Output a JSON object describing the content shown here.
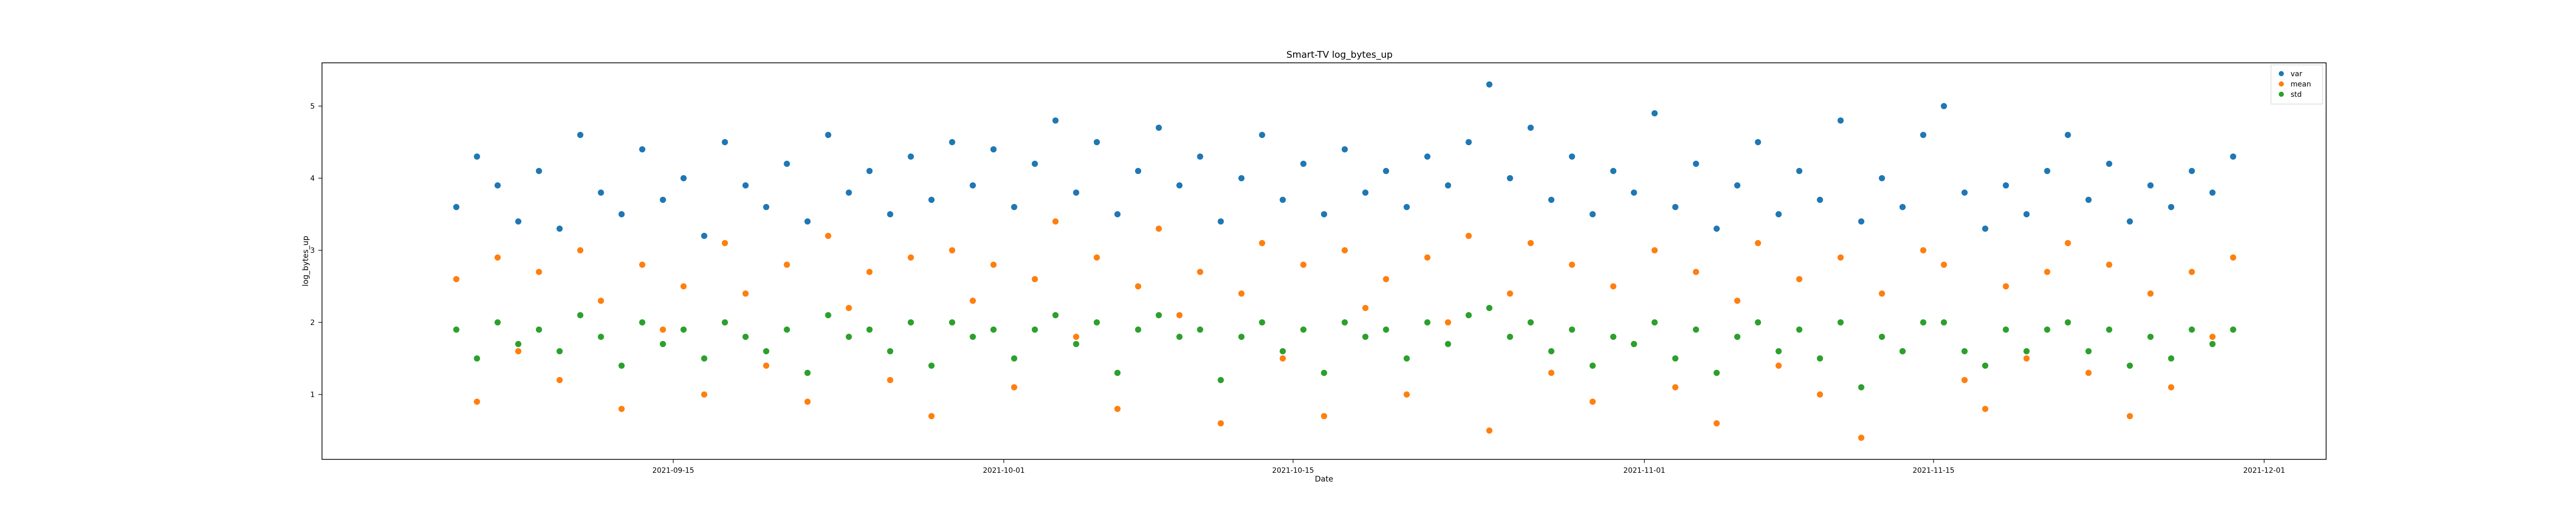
{
  "chart_data": {
    "type": "scatter",
    "title": "Smart-TV log_bytes_up",
    "xlabel": "Date",
    "ylabel": "log_bytes_up",
    "xlim": [
      "2021-08-29",
      "2021-12-04"
    ],
    "ylim": [
      0.1,
      5.6
    ],
    "x_ticks": [
      "2021-09-15",
      "2021-10-01",
      "2021-10-15",
      "2021-11-01",
      "2021-11-15",
      "2021-12-01"
    ],
    "y_ticks": [
      1,
      2,
      3,
      4,
      5
    ],
    "grid": false,
    "legend_position": "top-right",
    "series": [
      {
        "name": "var",
        "color": "#1f77b4",
        "points": [
          [
            "2021-09-04",
            3.6
          ],
          [
            "2021-09-05",
            4.3
          ],
          [
            "2021-09-06",
            3.9
          ],
          [
            "2021-09-07",
            3.4
          ],
          [
            "2021-09-08",
            4.1
          ],
          [
            "2021-09-09",
            3.3
          ],
          [
            "2021-09-10",
            4.6
          ],
          [
            "2021-09-11",
            3.8
          ],
          [
            "2021-09-12",
            3.5
          ],
          [
            "2021-09-13",
            4.4
          ],
          [
            "2021-09-14",
            3.7
          ],
          [
            "2021-09-15",
            4.0
          ],
          [
            "2021-09-16",
            3.2
          ],
          [
            "2021-09-17",
            4.5
          ],
          [
            "2021-09-18",
            3.9
          ],
          [
            "2021-09-19",
            3.6
          ],
          [
            "2021-09-20",
            4.2
          ],
          [
            "2021-09-21",
            3.4
          ],
          [
            "2021-09-22",
            4.6
          ],
          [
            "2021-09-23",
            3.8
          ],
          [
            "2021-09-24",
            4.1
          ],
          [
            "2021-09-25",
            3.5
          ],
          [
            "2021-09-26",
            4.3
          ],
          [
            "2021-09-27",
            3.7
          ],
          [
            "2021-09-28",
            4.5
          ],
          [
            "2021-09-29",
            3.9
          ],
          [
            "2021-09-30",
            4.4
          ],
          [
            "2021-10-01",
            3.6
          ],
          [
            "2021-10-02",
            4.2
          ],
          [
            "2021-10-03",
            4.8
          ],
          [
            "2021-10-04",
            3.8
          ],
          [
            "2021-10-05",
            4.5
          ],
          [
            "2021-10-06",
            3.5
          ],
          [
            "2021-10-07",
            4.1
          ],
          [
            "2021-10-08",
            4.7
          ],
          [
            "2021-10-09",
            3.9
          ],
          [
            "2021-10-10",
            4.3
          ],
          [
            "2021-10-11",
            3.4
          ],
          [
            "2021-10-12",
            4.0
          ],
          [
            "2021-10-13",
            4.6
          ],
          [
            "2021-10-14",
            3.7
          ],
          [
            "2021-10-15",
            4.2
          ],
          [
            "2021-10-16",
            3.5
          ],
          [
            "2021-10-17",
            4.4
          ],
          [
            "2021-10-18",
            3.8
          ],
          [
            "2021-10-19",
            4.1
          ],
          [
            "2021-10-20",
            3.6
          ],
          [
            "2021-10-21",
            4.3
          ],
          [
            "2021-10-22",
            3.9
          ],
          [
            "2021-10-23",
            4.5
          ],
          [
            "2021-10-24",
            5.3
          ],
          [
            "2021-10-25",
            4.0
          ],
          [
            "2021-10-26",
            4.7
          ],
          [
            "2021-10-27",
            3.7
          ],
          [
            "2021-10-28",
            4.3
          ],
          [
            "2021-10-29",
            3.5
          ],
          [
            "2021-10-30",
            4.1
          ],
          [
            "2021-10-31",
            3.8
          ],
          [
            "2021-11-01",
            4.9
          ],
          [
            "2021-11-02",
            3.6
          ],
          [
            "2021-11-03",
            4.2
          ],
          [
            "2021-11-04",
            3.3
          ],
          [
            "2021-11-05",
            3.9
          ],
          [
            "2021-11-06",
            4.5
          ],
          [
            "2021-11-07",
            3.5
          ],
          [
            "2021-11-08",
            4.1
          ],
          [
            "2021-11-09",
            3.7
          ],
          [
            "2021-11-10",
            4.8
          ],
          [
            "2021-11-11",
            3.4
          ],
          [
            "2021-11-12",
            4.0
          ],
          [
            "2021-11-13",
            3.6
          ],
          [
            "2021-11-14",
            4.6
          ],
          [
            "2021-11-15",
            5.0
          ],
          [
            "2021-11-16",
            3.8
          ],
          [
            "2021-11-17",
            3.3
          ],
          [
            "2021-11-18",
            3.9
          ],
          [
            "2021-11-19",
            3.5
          ],
          [
            "2021-11-20",
            4.1
          ],
          [
            "2021-11-21",
            4.6
          ],
          [
            "2021-11-22",
            3.7
          ],
          [
            "2021-11-23",
            4.2
          ],
          [
            "2021-11-24",
            3.4
          ],
          [
            "2021-11-25",
            3.9
          ],
          [
            "2021-11-26",
            3.6
          ],
          [
            "2021-11-27",
            4.1
          ],
          [
            "2021-11-28",
            3.8
          ],
          [
            "2021-11-29",
            4.3
          ]
        ]
      },
      {
        "name": "mean",
        "color": "#ff7f0e",
        "points": [
          [
            "2021-09-04",
            2.6
          ],
          [
            "2021-09-05",
            0.9
          ],
          [
            "2021-09-06",
            2.9
          ],
          [
            "2021-09-07",
            1.6
          ],
          [
            "2021-09-08",
            2.7
          ],
          [
            "2021-09-09",
            1.2
          ],
          [
            "2021-09-10",
            3.0
          ],
          [
            "2021-09-11",
            2.3
          ],
          [
            "2021-09-12",
            0.8
          ],
          [
            "2021-09-13",
            2.8
          ],
          [
            "2021-09-14",
            1.9
          ],
          [
            "2021-09-15",
            2.5
          ],
          [
            "2021-09-16",
            1.0
          ],
          [
            "2021-09-17",
            3.1
          ],
          [
            "2021-09-18",
            2.4
          ],
          [
            "2021-09-19",
            1.4
          ],
          [
            "2021-09-20",
            2.8
          ],
          [
            "2021-09-21",
            0.9
          ],
          [
            "2021-09-22",
            3.2
          ],
          [
            "2021-09-23",
            2.2
          ],
          [
            "2021-09-24",
            2.7
          ],
          [
            "2021-09-25",
            1.2
          ],
          [
            "2021-09-26",
            2.9
          ],
          [
            "2021-09-27",
            0.7
          ],
          [
            "2021-09-28",
            3.0
          ],
          [
            "2021-09-29",
            2.3
          ],
          [
            "2021-09-30",
            2.8
          ],
          [
            "2021-10-01",
            1.1
          ],
          [
            "2021-10-02",
            2.6
          ],
          [
            "2021-10-03",
            3.4
          ],
          [
            "2021-10-04",
            1.8
          ],
          [
            "2021-10-05",
            2.9
          ],
          [
            "2021-10-06",
            0.8
          ],
          [
            "2021-10-07",
            2.5
          ],
          [
            "2021-10-08",
            3.3
          ],
          [
            "2021-10-09",
            2.1
          ],
          [
            "2021-10-10",
            2.7
          ],
          [
            "2021-10-11",
            0.6
          ],
          [
            "2021-10-12",
            2.4
          ],
          [
            "2021-10-13",
            3.1
          ],
          [
            "2021-10-14",
            1.5
          ],
          [
            "2021-10-15",
            2.8
          ],
          [
            "2021-10-16",
            0.7
          ],
          [
            "2021-10-17",
            3.0
          ],
          [
            "2021-10-18",
            2.2
          ],
          [
            "2021-10-19",
            2.6
          ],
          [
            "2021-10-20",
            1.0
          ],
          [
            "2021-10-21",
            2.9
          ],
          [
            "2021-10-22",
            2.0
          ],
          [
            "2021-10-23",
            3.2
          ],
          [
            "2021-10-24",
            0.5
          ],
          [
            "2021-10-25",
            2.4
          ],
          [
            "2021-10-26",
            3.1
          ],
          [
            "2021-10-27",
            1.3
          ],
          [
            "2021-10-28",
            2.8
          ],
          [
            "2021-10-29",
            0.9
          ],
          [
            "2021-10-30",
            2.5
          ],
          [
            "2021-10-31",
            1.7
          ],
          [
            "2021-11-01",
            3.0
          ],
          [
            "2021-11-02",
            1.1
          ],
          [
            "2021-11-03",
            2.7
          ],
          [
            "2021-11-04",
            0.6
          ],
          [
            "2021-11-05",
            2.3
          ],
          [
            "2021-11-06",
            3.1
          ],
          [
            "2021-11-07",
            1.4
          ],
          [
            "2021-11-08",
            2.6
          ],
          [
            "2021-11-09",
            1.0
          ],
          [
            "2021-11-10",
            2.9
          ],
          [
            "2021-11-11",
            0.4
          ],
          [
            "2021-11-12",
            2.4
          ],
          [
            "2021-11-13",
            1.6
          ],
          [
            "2021-11-14",
            3.0
          ],
          [
            "2021-11-15",
            2.8
          ],
          [
            "2021-11-16",
            1.2
          ],
          [
            "2021-11-17",
            0.8
          ],
          [
            "2021-11-18",
            2.5
          ],
          [
            "2021-11-19",
            1.5
          ],
          [
            "2021-11-20",
            2.7
          ],
          [
            "2021-11-21",
            3.1
          ],
          [
            "2021-11-22",
            1.3
          ],
          [
            "2021-11-23",
            2.8
          ],
          [
            "2021-11-24",
            0.7
          ],
          [
            "2021-11-25",
            2.4
          ],
          [
            "2021-11-26",
            1.1
          ],
          [
            "2021-11-27",
            2.7
          ],
          [
            "2021-11-28",
            1.8
          ],
          [
            "2021-11-29",
            2.9
          ]
        ]
      },
      {
        "name": "std",
        "color": "#2ca02c",
        "points": [
          [
            "2021-09-04",
            1.9
          ],
          [
            "2021-09-05",
            1.5
          ],
          [
            "2021-09-06",
            2.0
          ],
          [
            "2021-09-07",
            1.7
          ],
          [
            "2021-09-08",
            1.9
          ],
          [
            "2021-09-09",
            1.6
          ],
          [
            "2021-09-10",
            2.1
          ],
          [
            "2021-09-11",
            1.8
          ],
          [
            "2021-09-12",
            1.4
          ],
          [
            "2021-09-13",
            2.0
          ],
          [
            "2021-09-14",
            1.7
          ],
          [
            "2021-09-15",
            1.9
          ],
          [
            "2021-09-16",
            1.5
          ],
          [
            "2021-09-17",
            2.0
          ],
          [
            "2021-09-18",
            1.8
          ],
          [
            "2021-09-19",
            1.6
          ],
          [
            "2021-09-20",
            1.9
          ],
          [
            "2021-09-21",
            1.3
          ],
          [
            "2021-09-22",
            2.1
          ],
          [
            "2021-09-23",
            1.8
          ],
          [
            "2021-09-24",
            1.9
          ],
          [
            "2021-09-25",
            1.6
          ],
          [
            "2021-09-26",
            2.0
          ],
          [
            "2021-09-27",
            1.4
          ],
          [
            "2021-09-28",
            2.0
          ],
          [
            "2021-09-29",
            1.8
          ],
          [
            "2021-09-30",
            1.9
          ],
          [
            "2021-10-01",
            1.5
          ],
          [
            "2021-10-02",
            1.9
          ],
          [
            "2021-10-03",
            2.1
          ],
          [
            "2021-10-04",
            1.7
          ],
          [
            "2021-10-05",
            2.0
          ],
          [
            "2021-10-06",
            1.3
          ],
          [
            "2021-10-07",
            1.9
          ],
          [
            "2021-10-08",
            2.1
          ],
          [
            "2021-10-09",
            1.8
          ],
          [
            "2021-10-10",
            1.9
          ],
          [
            "2021-10-11",
            1.2
          ],
          [
            "2021-10-12",
            1.8
          ],
          [
            "2021-10-13",
            2.0
          ],
          [
            "2021-10-14",
            1.6
          ],
          [
            "2021-10-15",
            1.9
          ],
          [
            "2021-10-16",
            1.3
          ],
          [
            "2021-10-17",
            2.0
          ],
          [
            "2021-10-18",
            1.8
          ],
          [
            "2021-10-19",
            1.9
          ],
          [
            "2021-10-20",
            1.5
          ],
          [
            "2021-10-21",
            2.0
          ],
          [
            "2021-10-22",
            1.7
          ],
          [
            "2021-10-23",
            2.1
          ],
          [
            "2021-10-24",
            2.2
          ],
          [
            "2021-10-25",
            1.8
          ],
          [
            "2021-10-26",
            2.0
          ],
          [
            "2021-10-27",
            1.6
          ],
          [
            "2021-10-28",
            1.9
          ],
          [
            "2021-10-29",
            1.4
          ],
          [
            "2021-10-30",
            1.8
          ],
          [
            "2021-10-31",
            1.7
          ],
          [
            "2021-11-01",
            2.0
          ],
          [
            "2021-11-02",
            1.5
          ],
          [
            "2021-11-03",
            1.9
          ],
          [
            "2021-11-04",
            1.3
          ],
          [
            "2021-11-05",
            1.8
          ],
          [
            "2021-11-06",
            2.0
          ],
          [
            "2021-11-07",
            1.6
          ],
          [
            "2021-11-08",
            1.9
          ],
          [
            "2021-11-09",
            1.5
          ],
          [
            "2021-11-10",
            2.0
          ],
          [
            "2021-11-11",
            1.1
          ],
          [
            "2021-11-12",
            1.8
          ],
          [
            "2021-11-13",
            1.6
          ],
          [
            "2021-11-14",
            2.0
          ],
          [
            "2021-11-15",
            2.0
          ],
          [
            "2021-11-16",
            1.6
          ],
          [
            "2021-11-17",
            1.4
          ],
          [
            "2021-11-18",
            1.9
          ],
          [
            "2021-11-19",
            1.6
          ],
          [
            "2021-11-20",
            1.9
          ],
          [
            "2021-11-21",
            2.0
          ],
          [
            "2021-11-22",
            1.6
          ],
          [
            "2021-11-23",
            1.9
          ],
          [
            "2021-11-24",
            1.4
          ],
          [
            "2021-11-25",
            1.8
          ],
          [
            "2021-11-26",
            1.5
          ],
          [
            "2021-11-27",
            1.9
          ],
          [
            "2021-11-28",
            1.7
          ],
          [
            "2021-11-29",
            1.9
          ]
        ]
      }
    ]
  }
}
